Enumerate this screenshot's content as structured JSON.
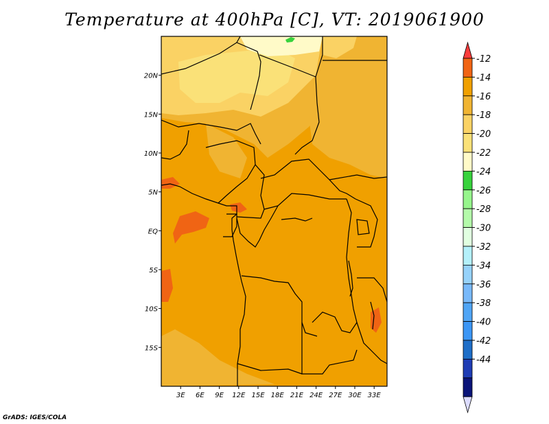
{
  "title": "Temperature at 400hPa [C], VT: 2019061900",
  "credit": "GrADS: IGES/COLA",
  "map": {
    "variable": "Temperature",
    "level": "400hPa",
    "units": "C",
    "valid_time": "2019061900",
    "lon_range": [
      0,
      35
    ],
    "lat_range": [
      -20,
      25
    ],
    "lon_ticks": [
      {
        "value": 3,
        "label": "3E"
      },
      {
        "value": 6,
        "label": "6E"
      },
      {
        "value": 9,
        "label": "9E"
      },
      {
        "value": 12,
        "label": "12E"
      },
      {
        "value": 15,
        "label": "15E"
      },
      {
        "value": 18,
        "label": "18E"
      },
      {
        "value": 21,
        "label": "21E"
      },
      {
        "value": 24,
        "label": "24E"
      },
      {
        "value": 27,
        "label": "27E"
      },
      {
        "value": 30,
        "label": "30E"
      },
      {
        "value": 33,
        "label": "33E"
      }
    ],
    "lat_ticks": [
      {
        "value": 20,
        "label": "20N"
      },
      {
        "value": 15,
        "label": "15N"
      },
      {
        "value": 10,
        "label": "10N"
      },
      {
        "value": 5,
        "label": "5N"
      },
      {
        "value": 0,
        "label": "EQ"
      },
      {
        "value": -5,
        "label": "5S"
      },
      {
        "value": -10,
        "label": "10S"
      },
      {
        "value": -15,
        "label": "15S"
      }
    ]
  },
  "colorbar": {
    "levels": [
      "-12",
      "-14",
      "-16",
      "-18",
      "-20",
      "-22",
      "-24",
      "-26",
      "-28",
      "-30",
      "-32",
      "-34",
      "-36",
      "-38",
      "-40",
      "-42",
      "-44"
    ],
    "colors": [
      "#fa3c3c",
      "#f06414",
      "#f0a000",
      "#f0b432",
      "#fad264",
      "#fae178",
      "#fffac8",
      "#37d23c",
      "#96f58c",
      "#b4faaa",
      "#e1ffe1",
      "#b4f0fa",
      "#96d2fa",
      "#78b9fa",
      "#50a5f5",
      "#3c96f5",
      "#1e6ec8",
      "#1e3cb4",
      "#0a1478",
      "#dcdcff"
    ]
  }
}
